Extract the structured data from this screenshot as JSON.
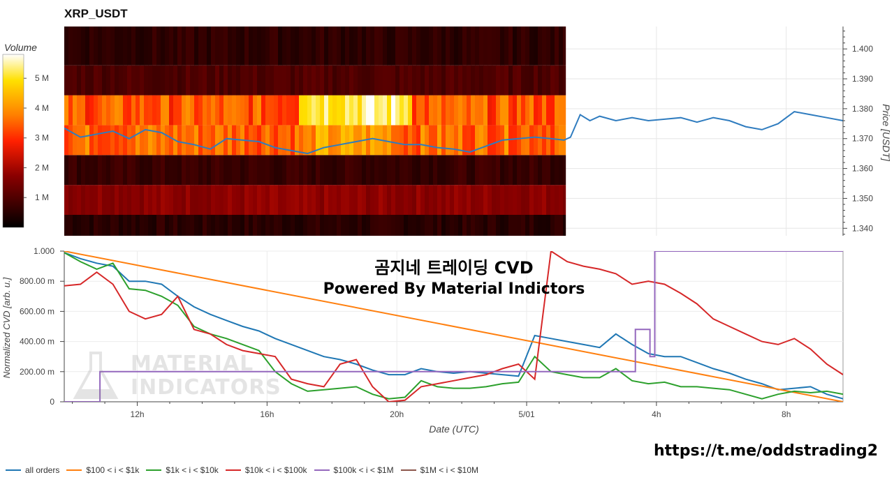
{
  "chart_data": [
    {
      "type": "heatmap",
      "title": "XRP_USDT",
      "colorbar_label": "Volume",
      "colorbar_ticks": [
        "1 M",
        "2 M",
        "3 M",
        "4 M",
        "5 M"
      ],
      "colorbar_values": [
        1,
        2,
        3,
        4,
        5
      ],
      "colorbar_max": 5.8,
      "price_axis_label": "Price [USDT]",
      "price_ticks": [
        "1.340",
        "1.350",
        "1.360",
        "1.370",
        "1.380",
        "1.390",
        "1.400"
      ],
      "ylim": [
        1.3375,
        1.4075
      ],
      "heatmap_end_time": 15.45,
      "bands": [
        {
          "low": 1.3375,
          "high": 1.3445,
          "intensity": 0.09
        },
        {
          "low": 1.3445,
          "high": 1.3545,
          "intensity": 0.3
        },
        {
          "low": 1.3545,
          "high": 1.3645,
          "intensity": 0.12
        },
        {
          "low": 1.3645,
          "high": 1.3745,
          "intensity": 0.62
        },
        {
          "low": 1.3745,
          "high": 1.3845,
          "intensity": 0.58
        },
        {
          "low": 1.3845,
          "high": 1.3945,
          "intensity": 0.17
        },
        {
          "low": 1.3945,
          "high": 1.4075,
          "intensity": 0.1
        }
      ],
      "hot_zones": [
        {
          "band": 4,
          "start": 7.2,
          "end": 10.6,
          "intensity": 0.92
        },
        {
          "band": 3,
          "start": 7.5,
          "end": 10.2,
          "intensity": 0.7
        }
      ],
      "price_series": {
        "name": "Price",
        "x": [
          0,
          0.5,
          1.0,
          1.5,
          2.0,
          2.5,
          3.0,
          3.5,
          4.0,
          4.5,
          5.0,
          5.5,
          6.0,
          6.5,
          7.0,
          7.5,
          8.0,
          8.5,
          9.0,
          9.5,
          10.0,
          10.5,
          11.0,
          11.5,
          12.0,
          12.5,
          13.0,
          13.5,
          14.0,
          14.5,
          15.0,
          15.4,
          15.6,
          15.9,
          16.2,
          16.5,
          17.0,
          17.5,
          18.0,
          18.5,
          19.0,
          19.5,
          20.0,
          20.5,
          21.0,
          21.5,
          22.0,
          22.5,
          23.0,
          23.5,
          24.0
        ],
        "y": [
          1.3735,
          1.3705,
          1.3715,
          1.3725,
          1.37,
          1.373,
          1.372,
          1.369,
          1.368,
          1.3665,
          1.37,
          1.3695,
          1.369,
          1.367,
          1.366,
          1.365,
          1.367,
          1.368,
          1.369,
          1.37,
          1.369,
          1.368,
          1.368,
          1.367,
          1.3665,
          1.3655,
          1.3675,
          1.3695,
          1.37,
          1.3705,
          1.37,
          1.3695,
          1.3705,
          1.378,
          1.376,
          1.3775,
          1.376,
          1.377,
          1.376,
          1.3765,
          1.377,
          1.3755,
          1.377,
          1.376,
          1.374,
          1.373,
          1.375,
          1.379,
          1.378,
          1.377,
          1.376
        ]
      }
    },
    {
      "type": "line",
      "ylabel": "Normalized CVD [arb. u.]",
      "xlabel": "Date (UTC)",
      "xlim": [
        0,
        24
      ],
      "x_ticks": [
        {
          "at": 2.25,
          "label": "12h"
        },
        {
          "at": 6.25,
          "label": "16h"
        },
        {
          "at": 10.25,
          "label": "20h"
        },
        {
          "at": 14.25,
          "label": "5/01"
        },
        {
          "at": 18.25,
          "label": "4h"
        },
        {
          "at": 22.25,
          "label": "8h"
        }
      ],
      "ylim": [
        0,
        1
      ],
      "y_ticks": [
        {
          "at": 0,
          "label": "0"
        },
        {
          "at": 0.2,
          "label": "200.00 m"
        },
        {
          "at": 0.4,
          "label": "400.00 m"
        },
        {
          "at": 0.6,
          "label": "600.00 m"
        },
        {
          "at": 0.8,
          "label": "800.00 m"
        },
        {
          "at": 1.0,
          "label": "1.000"
        }
      ],
      "series": [
        {
          "name": "all orders",
          "color": "#1f77b4",
          "x": [
            0,
            0.5,
            1.0,
            1.5,
            2.0,
            2.5,
            3.0,
            3.5,
            4.0,
            4.5,
            5.0,
            5.5,
            6.0,
            6.5,
            7.0,
            7.5,
            8.0,
            8.5,
            9.0,
            9.5,
            10.0,
            10.5,
            11.0,
            11.5,
            12.0,
            12.5,
            13.0,
            13.5,
            14.0,
            14.5,
            15.0,
            15.5,
            16.0,
            16.5,
            17.0,
            17.5,
            18.0,
            18.5,
            19.0,
            19.5,
            20.0,
            20.5,
            21.0,
            21.5,
            22.0,
            22.5,
            23.0,
            23.5,
            24.0
          ],
          "values": [
            0.99,
            0.95,
            0.92,
            0.9,
            0.8,
            0.8,
            0.78,
            0.7,
            0.63,
            0.58,
            0.54,
            0.5,
            0.47,
            0.42,
            0.38,
            0.34,
            0.3,
            0.28,
            0.25,
            0.21,
            0.18,
            0.18,
            0.22,
            0.2,
            0.19,
            0.2,
            0.19,
            0.18,
            0.17,
            0.44,
            0.42,
            0.4,
            0.38,
            0.36,
            0.45,
            0.38,
            0.32,
            0.3,
            0.3,
            0.26,
            0.22,
            0.19,
            0.15,
            0.12,
            0.08,
            0.09,
            0.1,
            0.05,
            0.02
          ]
        },
        {
          "name": "$100 < i < $1k",
          "color": "#ff7f0e",
          "x": [
            0,
            24
          ],
          "values": [
            1.0,
            0.0
          ]
        },
        {
          "name": "$1k < i < $10k",
          "color": "#2ca02c",
          "x": [
            0,
            0.5,
            1.0,
            1.5,
            2.0,
            2.5,
            3.0,
            3.5,
            4.0,
            4.5,
            5.0,
            5.5,
            6.0,
            6.5,
            7.0,
            7.5,
            8.0,
            8.5,
            9.0,
            9.5,
            10.0,
            10.5,
            11.0,
            11.5,
            12.0,
            12.5,
            13.0,
            13.5,
            14.0,
            14.5,
            15.0,
            15.5,
            16.0,
            16.5,
            17.0,
            17.5,
            18.0,
            18.5,
            19.0,
            19.5,
            20.0,
            20.5,
            21.0,
            21.5,
            22.0,
            22.5,
            23.0,
            23.5,
            24.0
          ],
          "values": [
            0.99,
            0.93,
            0.88,
            0.92,
            0.75,
            0.74,
            0.7,
            0.64,
            0.5,
            0.45,
            0.42,
            0.38,
            0.34,
            0.2,
            0.12,
            0.07,
            0.08,
            0.09,
            0.1,
            0.05,
            0.02,
            0.03,
            0.14,
            0.1,
            0.09,
            0.09,
            0.1,
            0.12,
            0.13,
            0.3,
            0.2,
            0.18,
            0.16,
            0.16,
            0.22,
            0.14,
            0.12,
            0.13,
            0.1,
            0.1,
            0.09,
            0.08,
            0.05,
            0.02,
            0.05,
            0.07,
            0.06,
            0.07,
            0.05
          ]
        },
        {
          "name": "$10k < i < $100k",
          "color": "#d62728",
          "x": [
            0,
            0.5,
            1.0,
            1.5,
            2.0,
            2.5,
            3.0,
            3.5,
            4.0,
            4.5,
            5.0,
            5.5,
            6.0,
            6.5,
            7.0,
            7.5,
            8.0,
            8.5,
            9.0,
            9.5,
            10.0,
            10.5,
            11.0,
            11.5,
            12.0,
            12.5,
            13.0,
            13.5,
            14.0,
            14.5,
            15.0,
            15.5,
            16.0,
            16.5,
            17.0,
            17.5,
            18.0,
            18.5,
            19.0,
            19.5,
            20.0,
            20.5,
            21.0,
            21.5,
            22.0,
            22.5,
            23.0,
            23.5,
            24.0
          ],
          "values": [
            0.77,
            0.78,
            0.86,
            0.78,
            0.6,
            0.55,
            0.58,
            0.7,
            0.48,
            0.45,
            0.38,
            0.34,
            0.32,
            0.3,
            0.15,
            0.12,
            0.1,
            0.25,
            0.28,
            0.1,
            0.0,
            0.01,
            0.1,
            0.12,
            0.14,
            0.16,
            0.18,
            0.22,
            0.25,
            0.15,
            1.0,
            0.93,
            0.9,
            0.88,
            0.85,
            0.78,
            0.8,
            0.78,
            0.72,
            0.65,
            0.55,
            0.5,
            0.45,
            0.4,
            0.38,
            0.42,
            0.35,
            0.25,
            0.18
          ]
        },
        {
          "name": "$100k < i < $1M",
          "color": "#9467bd",
          "x": [
            0,
            1.1,
            1.1,
            17.6,
            17.6,
            18.05,
            18.05,
            18.2,
            18.2,
            24
          ],
          "values": [
            0.0,
            0.0,
            0.2,
            0.2,
            0.48,
            0.48,
            0.3,
            0.3,
            1.0,
            1.0
          ]
        },
        {
          "name": "$1M < i < $10M",
          "color": "#8c564b",
          "x": [],
          "values": []
        }
      ]
    }
  ],
  "watermark": {
    "line1": "곰지네 트레이딩 CVD",
    "line2": "Powered By Material Indictors",
    "logo_line1": "MATERIAL",
    "logo_line2": "INDICATORS"
  },
  "footer": {
    "telegram": "https://t.me/oddstrading2"
  }
}
